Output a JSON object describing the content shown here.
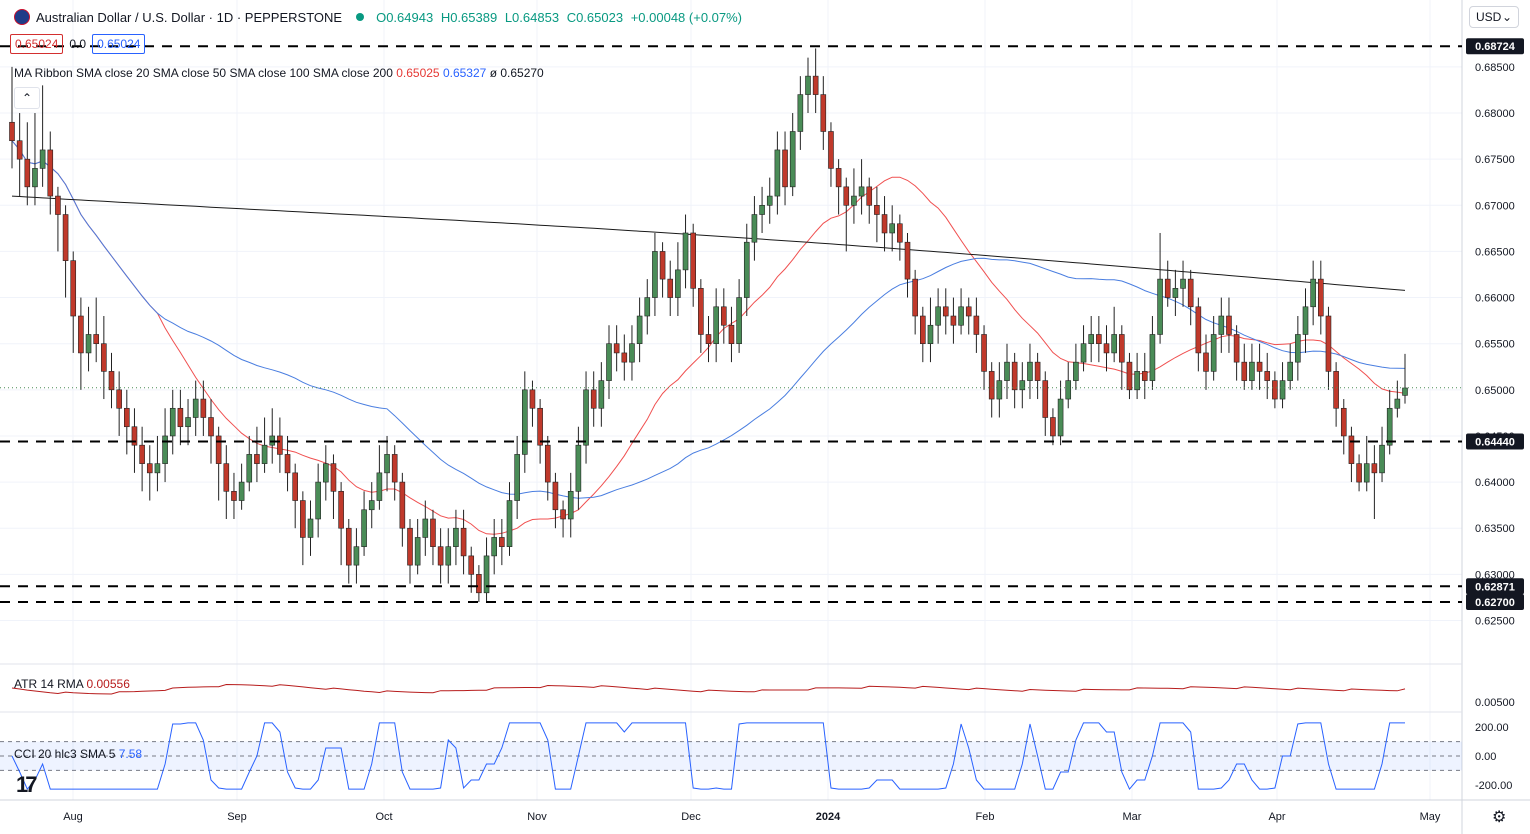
{
  "header": {
    "title": "Australian Dollar / U.S. Dollar · 1D · PEPPERSTONE",
    "open": "O0.64943",
    "high": "H0.65389",
    "low": "L0.64853",
    "close": "C0.65023",
    "change": "+0.00048 (+0.07%)",
    "price_box": "0.65024",
    "spread": "0.0",
    "price_box2": "0.65024"
  },
  "ma_ribbon": {
    "label": "MA Ribbon SMA close 20 SMA close 50 SMA close 100 SMA close 200",
    "v20": "0.65025",
    "v50": "0.65327",
    "v200": "ø  0.65270"
  },
  "atr": {
    "label": "ATR 14 RMA",
    "value": "0.00556"
  },
  "cci": {
    "label": "CCI 20 hlc3 SMA 5",
    "value": "7.58"
  },
  "currency": "USD",
  "colors": {
    "up": "#4a8c57",
    "down": "#c0392b",
    "sma20": "#f05050",
    "sma50": "#4a7ee0",
    "sma200": "#1a1a1a",
    "atr": "#b71c1c",
    "cci": "#2962ff"
  },
  "chart_data": {
    "type": "candlestick",
    "price_axis": {
      "ticks": [
        "0.68500",
        "0.68000",
        "0.67500",
        "0.67000",
        "0.66500",
        "0.66000",
        "0.65500",
        "0.65000",
        "0.64500",
        "0.64000",
        "0.63500",
        "0.63000",
        "0.62500"
      ],
      "range": [
        0.6205,
        0.689
      ]
    },
    "levels": [
      {
        "value": 0.68724,
        "label": "0.68724"
      },
      {
        "value": 0.6444,
        "label": "0.64440"
      },
      {
        "value": 0.62871,
        "label": "0.62871"
      },
      {
        "value": 0.627,
        "label": "0.62700"
      }
    ],
    "current_price": 0.65023,
    "time_axis": [
      "Aug",
      "Sep",
      "Oct",
      "Nov",
      "Dec",
      "2024",
      "Feb",
      "Mar",
      "Apr",
      "May"
    ],
    "candles": [
      [
        0.679,
        0.677,
        0.685,
        0.674
      ],
      [
        0.677,
        0.675,
        0.68,
        0.671
      ],
      [
        0.675,
        0.672,
        0.679,
        0.67
      ],
      [
        0.672,
        0.674,
        0.68,
        0.67
      ],
      [
        0.674,
        0.676,
        0.683,
        0.672
      ],
      [
        0.676,
        0.671,
        0.678,
        0.669
      ],
      [
        0.671,
        0.669,
        0.672,
        0.665
      ],
      [
        0.669,
        0.664,
        0.67,
        0.66
      ],
      [
        0.664,
        0.658,
        0.665,
        0.654
      ],
      [
        0.658,
        0.654,
        0.66,
        0.65
      ],
      [
        0.654,
        0.656,
        0.659,
        0.652
      ],
      [
        0.656,
        0.655,
        0.66,
        0.653
      ],
      [
        0.655,
        0.652,
        0.658,
        0.649
      ],
      [
        0.652,
        0.65,
        0.654,
        0.648
      ],
      [
        0.65,
        0.648,
        0.652,
        0.645
      ],
      [
        0.648,
        0.646,
        0.65,
        0.643
      ],
      [
        0.646,
        0.644,
        0.648,
        0.641
      ],
      [
        0.644,
        0.642,
        0.646,
        0.639
      ],
      [
        0.642,
        0.641,
        0.644,
        0.638
      ],
      [
        0.641,
        0.642,
        0.645,
        0.639
      ],
      [
        0.642,
        0.645,
        0.648,
        0.64
      ],
      [
        0.645,
        0.648,
        0.65,
        0.643
      ],
      [
        0.648,
        0.646,
        0.65,
        0.644
      ],
      [
        0.646,
        0.647,
        0.649,
        0.644
      ],
      [
        0.647,
        0.649,
        0.651,
        0.645
      ],
      [
        0.649,
        0.647,
        0.651,
        0.645
      ],
      [
        0.647,
        0.645,
        0.649,
        0.642
      ],
      [
        0.645,
        0.642,
        0.646,
        0.638
      ],
      [
        0.642,
        0.639,
        0.644,
        0.636
      ],
      [
        0.639,
        0.638,
        0.641,
        0.636
      ],
      [
        0.638,
        0.64,
        0.642,
        0.637
      ],
      [
        0.64,
        0.643,
        0.645,
        0.639
      ],
      [
        0.643,
        0.642,
        0.646,
        0.64
      ],
      [
        0.642,
        0.644,
        0.647,
        0.641
      ],
      [
        0.644,
        0.645,
        0.648,
        0.642
      ],
      [
        0.645,
        0.643,
        0.647,
        0.641
      ],
      [
        0.643,
        0.641,
        0.645,
        0.639
      ],
      [
        0.641,
        0.638,
        0.642,
        0.635
      ],
      [
        0.638,
        0.634,
        0.639,
        0.631
      ],
      [
        0.634,
        0.636,
        0.638,
        0.632
      ],
      [
        0.636,
        0.64,
        0.642,
        0.634
      ],
      [
        0.64,
        0.642,
        0.644,
        0.638
      ],
      [
        0.642,
        0.639,
        0.643,
        0.636
      ],
      [
        0.639,
        0.635,
        0.64,
        0.631
      ],
      [
        0.635,
        0.631,
        0.636,
        0.629
      ],
      [
        0.631,
        0.633,
        0.635,
        0.629
      ],
      [
        0.633,
        0.637,
        0.639,
        0.632
      ],
      [
        0.637,
        0.638,
        0.64,
        0.635
      ],
      [
        0.638,
        0.641,
        0.644,
        0.637
      ],
      [
        0.641,
        0.643,
        0.645,
        0.639
      ],
      [
        0.643,
        0.64,
        0.644,
        0.638
      ],
      [
        0.64,
        0.635,
        0.641,
        0.633
      ],
      [
        0.635,
        0.631,
        0.636,
        0.629
      ],
      [
        0.631,
        0.634,
        0.636,
        0.63
      ],
      [
        0.634,
        0.636,
        0.638,
        0.632
      ],
      [
        0.636,
        0.633,
        0.637,
        0.631
      ],
      [
        0.633,
        0.631,
        0.635,
        0.629
      ],
      [
        0.631,
        0.633,
        0.635,
        0.629
      ],
      [
        0.633,
        0.635,
        0.637,
        0.631
      ],
      [
        0.635,
        0.632,
        0.637,
        0.63
      ],
      [
        0.632,
        0.63,
        0.633,
        0.628
      ],
      [
        0.63,
        0.628,
        0.631,
        0.627
      ],
      [
        0.628,
        0.632,
        0.634,
        0.627
      ],
      [
        0.632,
        0.634,
        0.636,
        0.63
      ],
      [
        0.634,
        0.633,
        0.636,
        0.631
      ],
      [
        0.633,
        0.638,
        0.64,
        0.632
      ],
      [
        0.638,
        0.643,
        0.645,
        0.636
      ],
      [
        0.643,
        0.65,
        0.652,
        0.641
      ],
      [
        0.65,
        0.648,
        0.651,
        0.646
      ],
      [
        0.648,
        0.644,
        0.649,
        0.642
      ],
      [
        0.644,
        0.64,
        0.645,
        0.638
      ],
      [
        0.64,
        0.637,
        0.641,
        0.635
      ],
      [
        0.637,
        0.636,
        0.638,
        0.634
      ],
      [
        0.636,
        0.639,
        0.641,
        0.634
      ],
      [
        0.639,
        0.644,
        0.646,
        0.637
      ],
      [
        0.644,
        0.65,
        0.652,
        0.642
      ],
      [
        0.65,
        0.648,
        0.652,
        0.646
      ],
      [
        0.648,
        0.651,
        0.653,
        0.646
      ],
      [
        0.651,
        0.655,
        0.657,
        0.649
      ],
      [
        0.655,
        0.654,
        0.657,
        0.652
      ],
      [
        0.654,
        0.653,
        0.656,
        0.651
      ],
      [
        0.653,
        0.655,
        0.657,
        0.651
      ],
      [
        0.655,
        0.658,
        0.66,
        0.653
      ],
      [
        0.658,
        0.66,
        0.662,
        0.656
      ],
      [
        0.66,
        0.665,
        0.667,
        0.658
      ],
      [
        0.665,
        0.662,
        0.666,
        0.66
      ],
      [
        0.662,
        0.66,
        0.664,
        0.658
      ],
      [
        0.66,
        0.663,
        0.666,
        0.658
      ],
      [
        0.663,
        0.667,
        0.669,
        0.661
      ],
      [
        0.667,
        0.661,
        0.668,
        0.659
      ],
      [
        0.661,
        0.656,
        0.662,
        0.654
      ],
      [
        0.656,
        0.655,
        0.658,
        0.653
      ],
      [
        0.655,
        0.659,
        0.661,
        0.653
      ],
      [
        0.659,
        0.657,
        0.661,
        0.655
      ],
      [
        0.657,
        0.655,
        0.659,
        0.653
      ],
      [
        0.655,
        0.66,
        0.662,
        0.654
      ],
      [
        0.66,
        0.666,
        0.668,
        0.658
      ],
      [
        0.666,
        0.669,
        0.671,
        0.664
      ],
      [
        0.669,
        0.67,
        0.672,
        0.667
      ],
      [
        0.67,
        0.671,
        0.673,
        0.668
      ],
      [
        0.671,
        0.676,
        0.678,
        0.669
      ],
      [
        0.676,
        0.672,
        0.678,
        0.67
      ],
      [
        0.672,
        0.678,
        0.68,
        0.671
      ],
      [
        0.678,
        0.682,
        0.684,
        0.676
      ],
      [
        0.682,
        0.684,
        0.686,
        0.68
      ],
      [
        0.684,
        0.682,
        0.687,
        0.68
      ],
      [
        0.682,
        0.678,
        0.684,
        0.676
      ],
      [
        0.678,
        0.674,
        0.679,
        0.672
      ],
      [
        0.674,
        0.672,
        0.675,
        0.669
      ],
      [
        0.672,
        0.67,
        0.673,
        0.665
      ],
      [
        0.67,
        0.671,
        0.674,
        0.668
      ],
      [
        0.671,
        0.672,
        0.675,
        0.669
      ],
      [
        0.672,
        0.67,
        0.673,
        0.668
      ],
      [
        0.67,
        0.669,
        0.672,
        0.666
      ],
      [
        0.669,
        0.667,
        0.671,
        0.665
      ],
      [
        0.667,
        0.668,
        0.67,
        0.665
      ],
      [
        0.668,
        0.666,
        0.669,
        0.664
      ],
      [
        0.666,
        0.662,
        0.667,
        0.66
      ],
      [
        0.662,
        0.658,
        0.663,
        0.656
      ],
      [
        0.658,
        0.655,
        0.659,
        0.653
      ],
      [
        0.655,
        0.657,
        0.66,
        0.653
      ],
      [
        0.657,
        0.659,
        0.661,
        0.655
      ],
      [
        0.659,
        0.658,
        0.661,
        0.656
      ],
      [
        0.658,
        0.657,
        0.66,
        0.655
      ],
      [
        0.657,
        0.659,
        0.661,
        0.656
      ],
      [
        0.659,
        0.658,
        0.66,
        0.656
      ],
      [
        0.658,
        0.656,
        0.66,
        0.654
      ],
      [
        0.656,
        0.652,
        0.657,
        0.65
      ],
      [
        0.652,
        0.649,
        0.653,
        0.647
      ],
      [
        0.649,
        0.651,
        0.653,
        0.647
      ],
      [
        0.651,
        0.653,
        0.655,
        0.649
      ],
      [
        0.653,
        0.65,
        0.654,
        0.648
      ],
      [
        0.65,
        0.651,
        0.653,
        0.648
      ],
      [
        0.651,
        0.653,
        0.655,
        0.649
      ],
      [
        0.653,
        0.651,
        0.654,
        0.649
      ],
      [
        0.651,
        0.647,
        0.652,
        0.645
      ],
      [
        0.647,
        0.645,
        0.648,
        0.644
      ],
      [
        0.645,
        0.649,
        0.651,
        0.644
      ],
      [
        0.649,
        0.651,
        0.653,
        0.648
      ],
      [
        0.651,
        0.653,
        0.655,
        0.65
      ],
      [
        0.653,
        0.655,
        0.657,
        0.652
      ],
      [
        0.655,
        0.656,
        0.658,
        0.653
      ],
      [
        0.656,
        0.655,
        0.658,
        0.653
      ],
      [
        0.655,
        0.654,
        0.657,
        0.652
      ],
      [
        0.654,
        0.656,
        0.659,
        0.653
      ],
      [
        0.656,
        0.653,
        0.657,
        0.65
      ],
      [
        0.653,
        0.65,
        0.654,
        0.649
      ],
      [
        0.65,
        0.652,
        0.654,
        0.649
      ],
      [
        0.652,
        0.651,
        0.654,
        0.649
      ],
      [
        0.651,
        0.656,
        0.658,
        0.65
      ],
      [
        0.656,
        0.662,
        0.667,
        0.655
      ],
      [
        0.662,
        0.66,
        0.664,
        0.659
      ],
      [
        0.66,
        0.661,
        0.663,
        0.658
      ],
      [
        0.661,
        0.662,
        0.664,
        0.659
      ],
      [
        0.662,
        0.659,
        0.663,
        0.657
      ],
      [
        0.659,
        0.654,
        0.66,
        0.652
      ],
      [
        0.654,
        0.652,
        0.656,
        0.65
      ],
      [
        0.652,
        0.656,
        0.658,
        0.651
      ],
      [
        0.656,
        0.658,
        0.66,
        0.654
      ],
      [
        0.658,
        0.656,
        0.66,
        0.654
      ],
      [
        0.656,
        0.653,
        0.657,
        0.651
      ],
      [
        0.653,
        0.651,
        0.655,
        0.65
      ],
      [
        0.651,
        0.653,
        0.655,
        0.65
      ],
      [
        0.653,
        0.652,
        0.655,
        0.65
      ],
      [
        0.652,
        0.651,
        0.654,
        0.649
      ],
      [
        0.651,
        0.649,
        0.652,
        0.648
      ],
      [
        0.649,
        0.651,
        0.653,
        0.648
      ],
      [
        0.651,
        0.653,
        0.655,
        0.65
      ],
      [
        0.653,
        0.656,
        0.658,
        0.651
      ],
      [
        0.656,
        0.659,
        0.661,
        0.654
      ],
      [
        0.659,
        0.662,
        0.664,
        0.657
      ],
      [
        0.662,
        0.658,
        0.664,
        0.656
      ],
      [
        0.658,
        0.652,
        0.659,
        0.65
      ],
      [
        0.652,
        0.648,
        0.653,
        0.646
      ],
      [
        0.648,
        0.645,
        0.649,
        0.643
      ],
      [
        0.645,
        0.642,
        0.646,
        0.64
      ],
      [
        0.642,
        0.64,
        0.643,
        0.639
      ],
      [
        0.64,
        0.642,
        0.645,
        0.639
      ],
      [
        0.642,
        0.641,
        0.644,
        0.636
      ],
      [
        0.641,
        0.644,
        0.646,
        0.64
      ],
      [
        0.644,
        0.648,
        0.65,
        0.643
      ],
      [
        0.648,
        0.649,
        0.651,
        0.647
      ],
      [
        0.6494,
        0.6502,
        0.6539,
        0.6485
      ]
    ],
    "atr_value": 0.00556,
    "atr_axis": [
      "0.00500"
    ],
    "cci_axis": [
      "200.00",
      "0.00",
      "-200.00"
    ],
    "cci_value": 7.58
  }
}
